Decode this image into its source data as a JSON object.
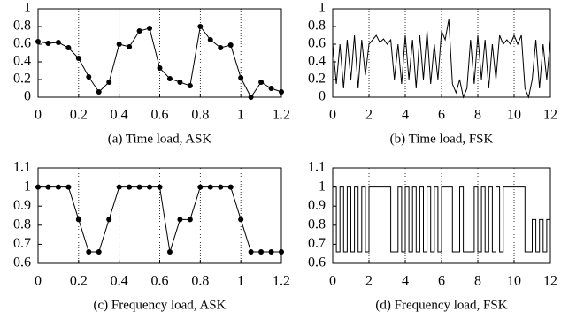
{
  "chart_data": [
    {
      "type": "line",
      "title": "(a) Time load, ASK",
      "markers": true,
      "drawstyle": "default",
      "color": "#000000",
      "grid": true,
      "x": [
        0,
        0.05,
        0.1,
        0.15,
        0.2,
        0.25,
        0.3,
        0.35,
        0.4,
        0.45,
        0.5,
        0.55,
        0.6,
        0.65,
        0.7,
        0.75,
        0.8,
        0.85,
        0.9,
        0.95,
        1.0,
        1.05,
        1.1,
        1.15,
        1.2
      ],
      "values": [
        0.63,
        0.61,
        0.62,
        0.56,
        0.44,
        0.23,
        0.06,
        0.17,
        0.6,
        0.57,
        0.75,
        0.78,
        0.33,
        0.21,
        0.17,
        0.13,
        0.8,
        0.65,
        0.56,
        0.59,
        0.22,
        0.0,
        0.17,
        0.1,
        0.06
      ],
      "xlim": [
        0,
        1.2
      ],
      "xticks": [
        0,
        0.2,
        0.4,
        0.6,
        0.8,
        1,
        1.2
      ],
      "ylim": [
        0,
        1
      ],
      "yticks": [
        0,
        0.2,
        0.4,
        0.6,
        0.8,
        1
      ]
    },
    {
      "type": "line",
      "title": "(b) Time load, FSK",
      "markers": false,
      "drawstyle": "default",
      "color": "#000000",
      "grid": true,
      "x": [
        0,
        0.2,
        0.4,
        0.6,
        0.8,
        1,
        1.2,
        1.4,
        1.6,
        1.8,
        2,
        2.2,
        2.4,
        2.6,
        2.8,
        3,
        3.2,
        3.4,
        3.6,
        3.8,
        4,
        4.2,
        4.4,
        4.6,
        4.8,
        5,
        5.2,
        5.4,
        5.6,
        5.8,
        6,
        6.2,
        6.4,
        6.6,
        6.8,
        7,
        7.2,
        7.4,
        7.6,
        7.8,
        8,
        8.2,
        8.4,
        8.6,
        8.8,
        9,
        9.2,
        9.4,
        9.6,
        9.8,
        10,
        10.2,
        10.4,
        10.6,
        10.8,
        11,
        11.2,
        11.4,
        11.6,
        11.8,
        12
      ],
      "values": [
        0.6,
        0.15,
        0.6,
        0.1,
        0.65,
        0.2,
        0.7,
        0.1,
        0.65,
        0.25,
        0.6,
        0.65,
        0.7,
        0.62,
        0.66,
        0.6,
        0.65,
        0.2,
        0.6,
        0.15,
        0.7,
        0.2,
        0.65,
        0.1,
        0.7,
        0.2,
        0.75,
        0.15,
        0.6,
        0.2,
        0.75,
        0.65,
        0.88,
        0.15,
        0.05,
        0.2,
        0.0,
        0.1,
        0.65,
        0.15,
        0.7,
        0.2,
        0.65,
        0.1,
        0.6,
        0.2,
        0.7,
        0.6,
        0.65,
        0.6,
        0.7,
        0.6,
        0.7,
        0.1,
        0.0,
        0.2,
        0.65,
        0.1,
        0.6,
        0.2,
        0.65
      ],
      "xlim": [
        0,
        12
      ],
      "xticks": [
        0,
        2,
        4,
        6,
        8,
        10,
        12
      ],
      "ylim": [
        0,
        1
      ],
      "yticks": [
        0,
        0.2,
        0.4,
        0.6,
        0.8,
        1
      ]
    },
    {
      "type": "line",
      "title": "(c) Frequency load, ASK",
      "markers": true,
      "drawstyle": "default",
      "color": "#000000",
      "grid": true,
      "x": [
        0,
        0.05,
        0.1,
        0.15,
        0.2,
        0.25,
        0.3,
        0.35,
        0.4,
        0.45,
        0.5,
        0.55,
        0.6,
        0.65,
        0.7,
        0.75,
        0.8,
        0.85,
        0.9,
        0.95,
        1.0,
        1.05,
        1.1,
        1.15,
        1.2
      ],
      "values": [
        1,
        1,
        1,
        1,
        0.83,
        0.66,
        0.66,
        0.83,
        1,
        1,
        1,
        1,
        1,
        0.66,
        0.83,
        0.83,
        1,
        1,
        1,
        1,
        0.83,
        0.66,
        0.66,
        0.66,
        0.66
      ],
      "xlim": [
        0,
        1.2
      ],
      "xticks": [
        0,
        0.2,
        0.4,
        0.6,
        0.8,
        1,
        1.2
      ],
      "ylim": [
        0.6,
        1.1
      ],
      "yticks": [
        0.6,
        0.7,
        0.8,
        0.9,
        1,
        1.1
      ]
    },
    {
      "type": "line",
      "title": "(d) Frequency load, FSK",
      "markers": false,
      "drawstyle": "steps",
      "color": "#000000",
      "grid": true,
      "x": [
        0,
        0.2,
        0.4,
        0.6,
        0.8,
        1,
        1.2,
        1.4,
        1.6,
        1.8,
        2,
        2.2,
        2.4,
        2.6,
        2.8,
        3,
        3.2,
        3.4,
        3.6,
        3.8,
        4,
        4.2,
        4.4,
        4.6,
        4.8,
        5,
        5.2,
        5.4,
        5.6,
        5.8,
        6,
        6.2,
        6.4,
        6.6,
        6.8,
        7,
        7.2,
        7.4,
        7.6,
        7.8,
        8,
        8.2,
        8.4,
        8.6,
        8.8,
        9,
        9.2,
        9.4,
        9.6,
        9.8,
        10,
        10.2,
        10.4,
        10.6,
        10.8,
        11,
        11.2,
        11.4,
        11.6,
        11.8,
        12
      ],
      "values": [
        1,
        0.66,
        1,
        0.66,
        1,
        0.66,
        1,
        0.66,
        1,
        0.66,
        1,
        1,
        1,
        1,
        1,
        1,
        0.66,
        0.66,
        1,
        0.66,
        1,
        0.66,
        1,
        0.66,
        1,
        0.66,
        1,
        0.66,
        1,
        0.66,
        1,
        1,
        1,
        0.66,
        0.66,
        1,
        0.66,
        0.66,
        0.66,
        1,
        0.66,
        1,
        0.66,
        1,
        0.66,
        1,
        0.66,
        1,
        1,
        1,
        1,
        1,
        1,
        0.66,
        0.66,
        0.83,
        0.66,
        0.83,
        0.66,
        0.83,
        0.66
      ],
      "xlim": [
        0,
        12
      ],
      "xticks": [
        0,
        2,
        4,
        6,
        8,
        10,
        12
      ],
      "ylim": [
        0.6,
        1.1
      ],
      "yticks": [
        0.6,
        0.7,
        0.8,
        0.9,
        1,
        1.1
      ]
    }
  ]
}
